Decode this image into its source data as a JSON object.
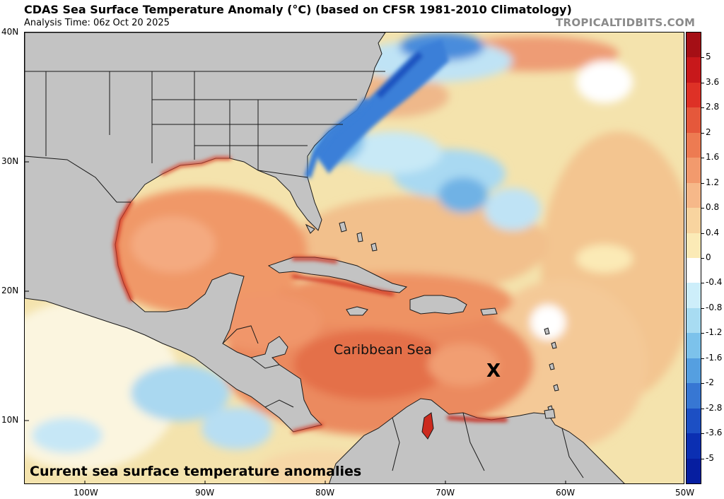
{
  "header": {
    "title": "CDAS Sea Surface Temperature Anomaly (°C) (based on CFSR 1981-2010 Climatology)",
    "analysis_time": "Analysis Time: 06z Oct 20 2025",
    "brand": "TROPICALTIDBITS.COM"
  },
  "map": {
    "latitude_labels": [
      "40N",
      "30N",
      "20N",
      "10N"
    ],
    "longitude_labels": [
      "100W",
      "90W",
      "80W",
      "70W",
      "60W",
      "50W"
    ],
    "region_label": "Caribbean Sea",
    "marker": "X",
    "caption": "Current sea surface temperature anomalies",
    "extent": {
      "west": -105,
      "east": -50,
      "south": 5,
      "north": 40
    },
    "colors": {
      "land": "#c3c3c3",
      "border": "#1a1a1a",
      "warm_gulf": "#f29a70",
      "warm_caribbean": "#eb8a5e",
      "hot_core": "#e06845",
      "hot_edge": "#cc2a1e",
      "atlantic_warm": "#f6c98c",
      "cool": "#a8dcf2",
      "cold": "#64a8e6",
      "very_cold": "#2866c8"
    }
  },
  "colorbar": {
    "labels": [
      "5",
      "3.6",
      "2.8",
      "2",
      "1.6",
      "1.2",
      "0.8",
      "0.4",
      "0",
      "-0.4",
      "-0.8",
      "-1.2",
      "-1.6",
      "-2",
      "-2.8",
      "-3.6",
      "-5"
    ],
    "colors": [
      "#a50f15",
      "#c8181b",
      "#de3126",
      "#e5583b",
      "#ed7b52",
      "#f29a6d",
      "#f6b889",
      "#f8d49f",
      "#fbeab6",
      "#ffffff",
      "#cdeefa",
      "#a8dcf2",
      "#7cc2eb",
      "#559fe0",
      "#3777d3",
      "#1c4fc4",
      "#0b2fb2",
      "#061ea0"
    ]
  }
}
